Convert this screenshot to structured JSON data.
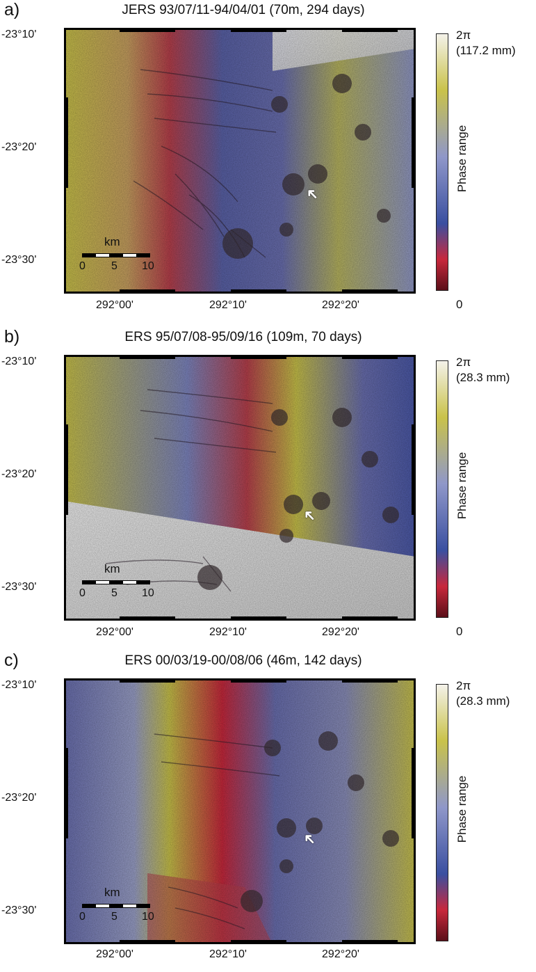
{
  "panels": [
    {
      "letter": "a)",
      "title": "JERS 93/07/11-94/04/01 (70m, 294 days)",
      "colorbar_max": "2π",
      "colorbar_max_mm": "(117.2 mm)",
      "colorbar_min": "0",
      "colorbar_title": "Phase range"
    },
    {
      "letter": "b)",
      "title": "ERS 95/07/08-95/09/16 (109m, 70 days)",
      "colorbar_max": "2π",
      "colorbar_max_mm": "(28.3 mm)",
      "colorbar_min": "0",
      "colorbar_title": "Phase range"
    },
    {
      "letter": "c)",
      "title": "ERS 00/03/19-00/08/06 (46m, 142 days)",
      "colorbar_max": "2π",
      "colorbar_max_mm": "(28.3 mm)",
      "colorbar_min": "",
      "colorbar_title": "Phase range"
    }
  ],
  "lat_labels": [
    "-23°10'",
    "-23°20'",
    "-23°30'"
  ],
  "lon_labels": [
    "292°00'",
    "292°10'",
    "292°20'"
  ],
  "scale": {
    "unit": "km",
    "ticks": [
      "0",
      "5",
      "10"
    ]
  },
  "colors": {
    "phase_low": "#5a0f18",
    "phase_red": "#c8283c",
    "phase_blue": "#3a4fa0",
    "phase_lavender": "#8f97c9",
    "phase_yellow": "#c9c24a",
    "phase_white": "#f4f2ea"
  }
}
